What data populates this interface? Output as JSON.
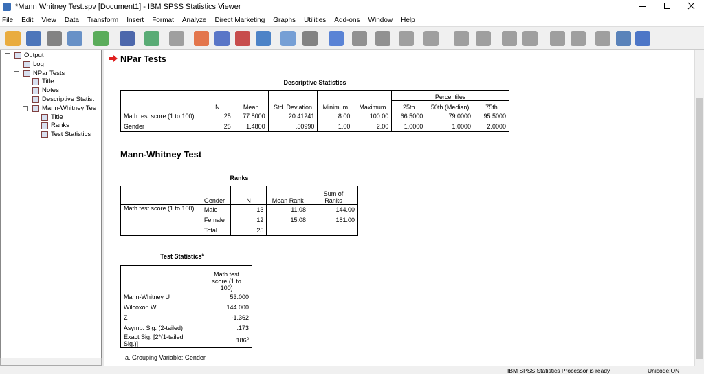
{
  "window": {
    "title": "*Mann Whitney Test.spv [Document1] - IBM SPSS Statistics Viewer"
  },
  "menu": [
    "File",
    "Edit",
    "View",
    "Data",
    "Transform",
    "Insert",
    "Format",
    "Analyze",
    "Direct Marketing",
    "Graphs",
    "Utilities",
    "Add-ons",
    "Window",
    "Help"
  ],
  "tree": [
    "Output",
    "Log",
    "NPar Tests",
    "Title",
    "Notes",
    "Descriptive Statist",
    "Mann-Whitney Tes",
    "Title",
    "Ranks",
    "Test Statistics"
  ],
  "content": {
    "heading1": "NPar Tests",
    "descriptive": {
      "title": "Descriptive Statistics",
      "percentiles": "Percentiles",
      "columns": [
        "N",
        "Mean",
        "Std. Deviation",
        "Minimum",
        "Maximum",
        "25th",
        "50th (Median)",
        "75th"
      ],
      "rows": [
        [
          "Math test score (1 to 100)",
          "25",
          "77.8000",
          "20.41241",
          "8.00",
          "100.00",
          "66.5000",
          "79.0000",
          "95.5000"
        ],
        [
          "Gender",
          "25",
          "1.4800",
          ".50990",
          "1.00",
          "2.00",
          "1.0000",
          "1.0000",
          "2.0000"
        ]
      ]
    },
    "heading2": "Mann-Whitney Test",
    "ranks": {
      "title": "Ranks",
      "columns": [
        "Gender",
        "N",
        "Mean Rank",
        "Sum of Ranks"
      ],
      "variable": "Math test score (1 to 100)",
      "rows": [
        {
          "group": "Male",
          "n": "13",
          "mean_rank": "11.08",
          "sum_of_ranks": "144.00"
        },
        {
          "group": "Female",
          "n": "12",
          "mean_rank": "15.08",
          "sum_of_ranks": "181.00"
        },
        {
          "group": "Total",
          "n": "25"
        }
      ]
    },
    "test_statistics": {
      "title": "Test Statistics",
      "title_note": "a",
      "column": "Math test score (1 to 100)",
      "rows": [
        {
          "label": "Mann-Whitney U",
          "value": "53.000"
        },
        {
          "label": "Wilcoxon W",
          "value": "144.000"
        },
        {
          "label": "Z",
          "value": "-1.362"
        },
        {
          "label": "Asymp. Sig. (2-tailed)",
          "value": ".173"
        },
        {
          "label": "Exact Sig. [2*(1-tailed Sig.)]",
          "value": ".186",
          "note": "b"
        }
      ],
      "footnote": "a. Grouping Variable: Gender"
    }
  },
  "status": {
    "message": "IBM SPSS Statistics Processor is ready",
    "unicode": "Unicode:ON"
  }
}
